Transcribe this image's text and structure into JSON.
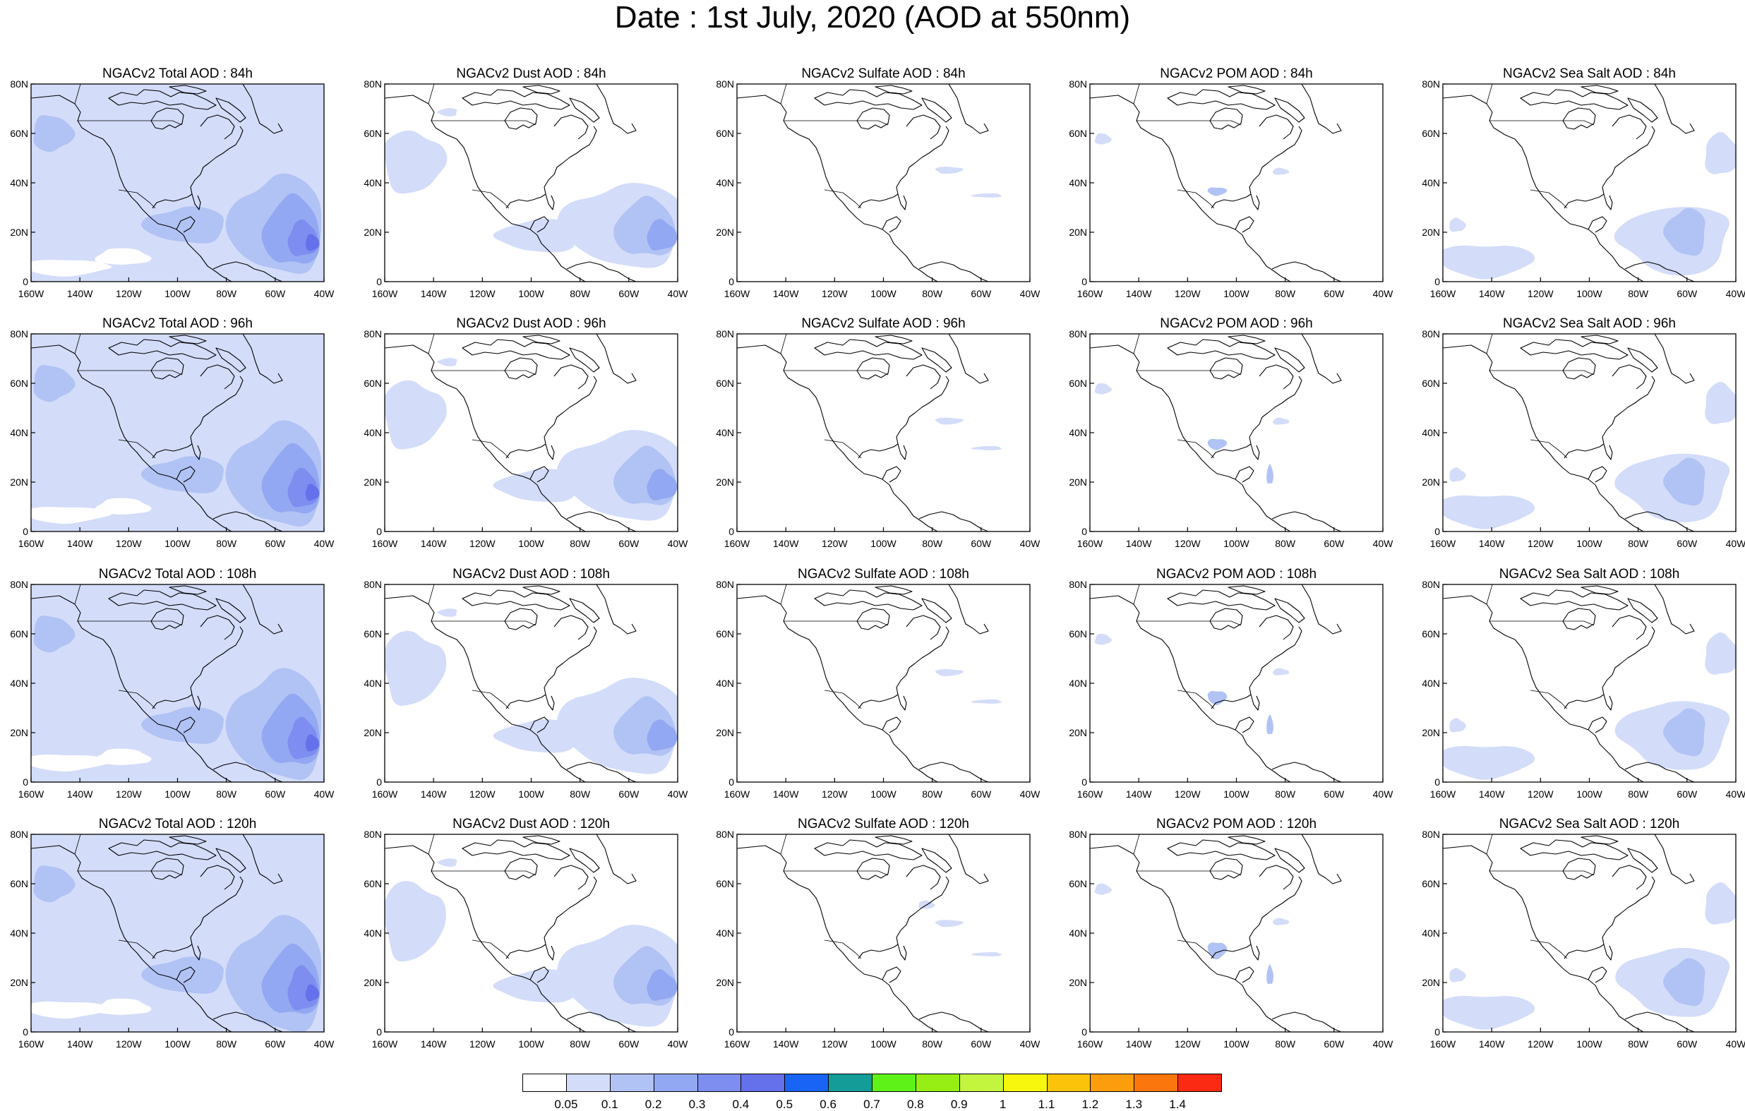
{
  "title": "Date : 1st July, 2020 (AOD at 550nm)",
  "lat_ticks": [
    "80N",
    "60N",
    "40N",
    "20N",
    "0"
  ],
  "lon_ticks": [
    "160W",
    "140W",
    "120W",
    "100W",
    "80W",
    "60W",
    "40W"
  ],
  "panel_titles": [
    [
      "NGACv2 Total AOD : 84h",
      "NGACv2 Dust AOD : 84h",
      "NGACv2 Sulfate AOD : 84h",
      "NGACv2 POM AOD : 84h",
      "NGACv2 Sea Salt AOD : 84h"
    ],
    [
      "NGACv2 Total AOD : 96h",
      "NGACv2 Dust AOD : 96h",
      "NGACv2 Sulfate AOD : 96h",
      "NGACv2 POM AOD : 96h",
      "NGACv2 Sea Salt AOD : 96h"
    ],
    [
      "NGACv2 Total AOD : 108h",
      "NGACv2 Dust AOD : 108h",
      "NGACv2 Sulfate AOD : 108h",
      "NGACv2 POM AOD : 108h",
      "NGACv2 Sea Salt AOD : 108h"
    ],
    [
      "NGACv2 Total AOD : 120h",
      "NGACv2 Dust AOD : 120h",
      "NGACv2 Sulfate AOD : 120h",
      "NGACv2 POM AOD : 120h",
      "NGACv2 Sea Salt  AOD : 120h"
    ]
  ],
  "colorbar": {
    "colors": [
      "#ffffff",
      "#d3dcf9",
      "#b1c2f4",
      "#93a8f2",
      "#7e8ef0",
      "#6570eb",
      "#1963f5",
      "#139c98",
      "#5ef219",
      "#97ee15",
      "#c3f53f",
      "#f7f70e",
      "#fbc40a",
      "#fb9d0d",
      "#fb770d",
      "#fb2a13"
    ],
    "labels": [
      "0.05",
      "0.1",
      "0.2",
      "0.3",
      "0.4",
      "0.5",
      "0.6",
      "0.7",
      "0.8",
      "0.9",
      "1",
      "1.1",
      "1.2",
      "1.3",
      "1.4"
    ]
  },
  "colors": {
    "aod_level_1": "#d3dcf9",
    "aod_level_2": "#b1c2f4",
    "aod_level_3": "#93a8f2",
    "aod_level_4": "#7e8ef0",
    "aod_level_5": "#6570eb",
    "coastline": "#000000"
  }
}
